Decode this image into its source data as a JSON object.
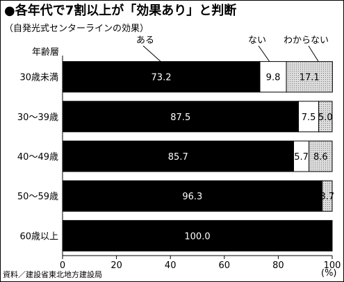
{
  "chart_data": {
    "type": "bar",
    "orientation": "horizontal",
    "stacked": true,
    "title": "●各年代で7割以上が「効果あり」と判断",
    "subtitle": "（自発光式センターラインの効果）",
    "category_header": "年齢層",
    "categories": [
      "30歳未満",
      "30～39歳",
      "40～49歳",
      "50～59歳",
      "60歳以上"
    ],
    "series": [
      {
        "name": "ある",
        "values": [
          73.2,
          87.5,
          85.7,
          96.3,
          100.0
        ],
        "color": "#000000",
        "label_color": "#ffffff"
      },
      {
        "name": "ない",
        "values": [
          9.8,
          7.5,
          5.7,
          0,
          0
        ],
        "color": "#ffffff",
        "label_color": "#000000"
      },
      {
        "name": "わからない",
        "values": [
          17.1,
          5.0,
          8.6,
          3.7,
          0
        ],
        "color": "#c8c8c8",
        "label_color": "#000000"
      }
    ],
    "data_labels": [
      [
        "73.2",
        "9.8",
        "17.1"
      ],
      [
        "87.5",
        "7.5",
        "5.0"
      ],
      [
        "85.7",
        "5.7",
        "8.6"
      ],
      [
        "96.3",
        "",
        "3.7"
      ],
      [
        "100.0",
        "",
        ""
      ]
    ],
    "xlim": [
      0,
      100
    ],
    "xticks": [
      "0",
      "20",
      "40",
      "60",
      "80",
      "100"
    ],
    "xunit": "(%)",
    "source": "資料／建設省東北地方建設局"
  }
}
